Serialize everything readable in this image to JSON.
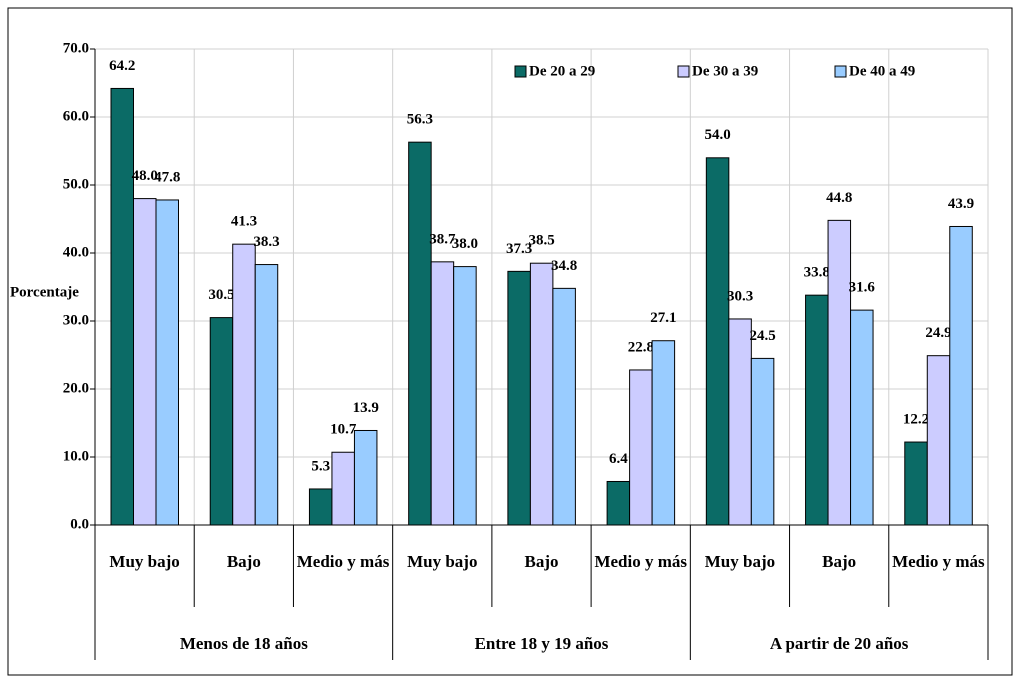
{
  "chart_data": {
    "type": "bar",
    "y_label": "Porcentaje",
    "categories": [
      "Muy bajo",
      "Bajo",
      "Medio y más",
      "Muy bajo",
      "Bajo",
      "Medio y más",
      "Muy bajo",
      "Bajo",
      "Medio y más"
    ],
    "groups": [
      "Menos de 18 años",
      "Entre 18 y 19 años",
      "A partir de 20 años"
    ],
    "series": [
      {
        "name": "De 20 a 29",
        "color": "#0b6b66",
        "values": [
          64.2,
          30.5,
          5.3,
          56.3,
          37.3,
          6.4,
          54.0,
          33.8,
          12.2
        ],
        "value_labels": [
          "64.2",
          "30.5",
          "5.3",
          "56.3",
          "37.3",
          "6.4",
          "54.0",
          "33.8",
          "12.2"
        ]
      },
      {
        "name": "De 30 a 39",
        "color": "#ccccff",
        "values": [
          48.0,
          41.3,
          10.7,
          38.7,
          38.5,
          22.8,
          30.3,
          44.8,
          24.9
        ],
        "value_labels": [
          "48.0",
          "41.3",
          "10.7",
          "38.7",
          "38.5",
          "22.8",
          "30.3",
          "44.8",
          "24.9"
        ]
      },
      {
        "name": "De 40 a 49",
        "color": "#99ccff",
        "values": [
          47.8,
          38.3,
          13.9,
          38.0,
          34.8,
          27.1,
          24.5,
          31.6,
          43.9
        ],
        "value_labels": [
          "47.8",
          "38.3",
          "13.9",
          "38.0",
          "34.8",
          "27.1",
          "24.5",
          "31.6",
          "43.9"
        ]
      }
    ],
    "ylim": [
      0,
      70
    ],
    "yticks": [
      {
        "value": 0,
        "label": "0.0"
      },
      {
        "value": 10,
        "label": "10.0"
      },
      {
        "value": 20,
        "label": "20.0"
      },
      {
        "value": 30,
        "label": "30.0"
      },
      {
        "value": 40,
        "label": "40.0"
      },
      {
        "value": 50,
        "label": "50.0"
      },
      {
        "value": 60,
        "label": "60.0"
      },
      {
        "value": 70,
        "label": "70.0"
      }
    ],
    "grid": true,
    "legend": "top-right"
  }
}
